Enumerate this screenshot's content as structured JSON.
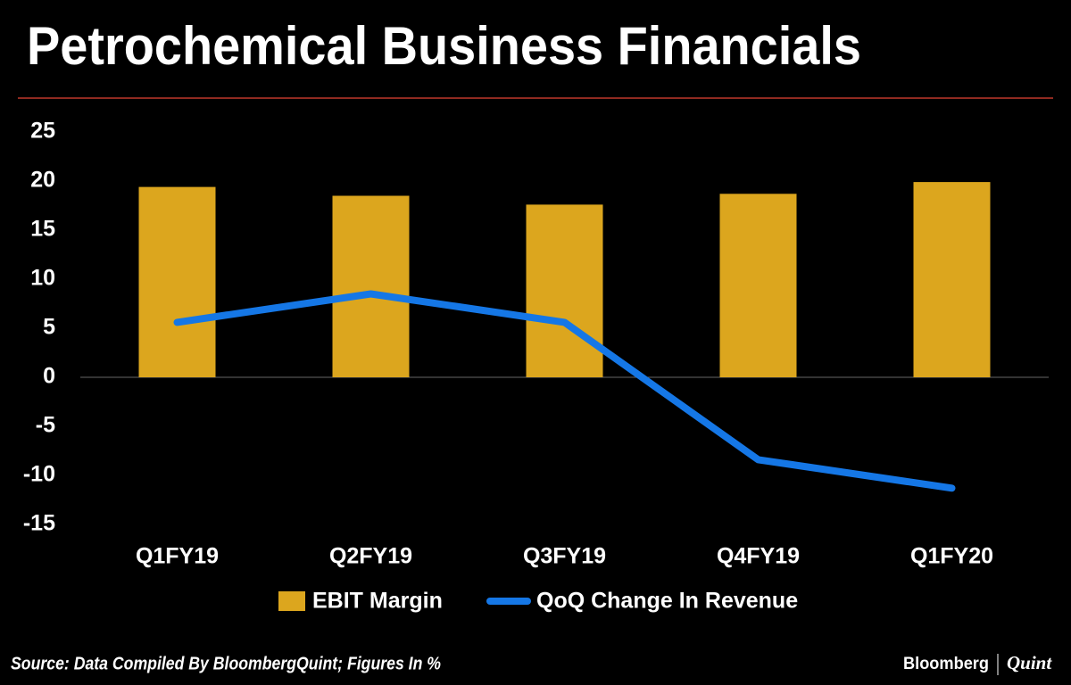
{
  "chart_data": {
    "type": "bar-line",
    "title": "Petrochemical Business Financials",
    "categories": [
      "Q1FY19",
      "Q2FY19",
      "Q3FY19",
      "Q4FY19",
      "Q1FY20"
    ],
    "series": [
      {
        "name": "EBIT Margin",
        "type": "bar",
        "color": "#dca61e",
        "values": [
          19.4,
          18.5,
          17.6,
          18.7,
          19.9
        ]
      },
      {
        "name": "QoQ Change In Revenue",
        "type": "line",
        "color": "#1577e6",
        "values": [
          5.6,
          8.5,
          5.6,
          -8.4,
          -11.3
        ]
      }
    ],
    "ylim": [
      -15,
      25
    ],
    "yticks": [
      -15,
      -10,
      -5,
      0,
      5,
      10,
      15,
      20,
      25
    ],
    "source": "Source: Data Compiled By BloombergQuint; Figures In %",
    "brand": [
      "Bloomberg",
      "Quint"
    ]
  }
}
